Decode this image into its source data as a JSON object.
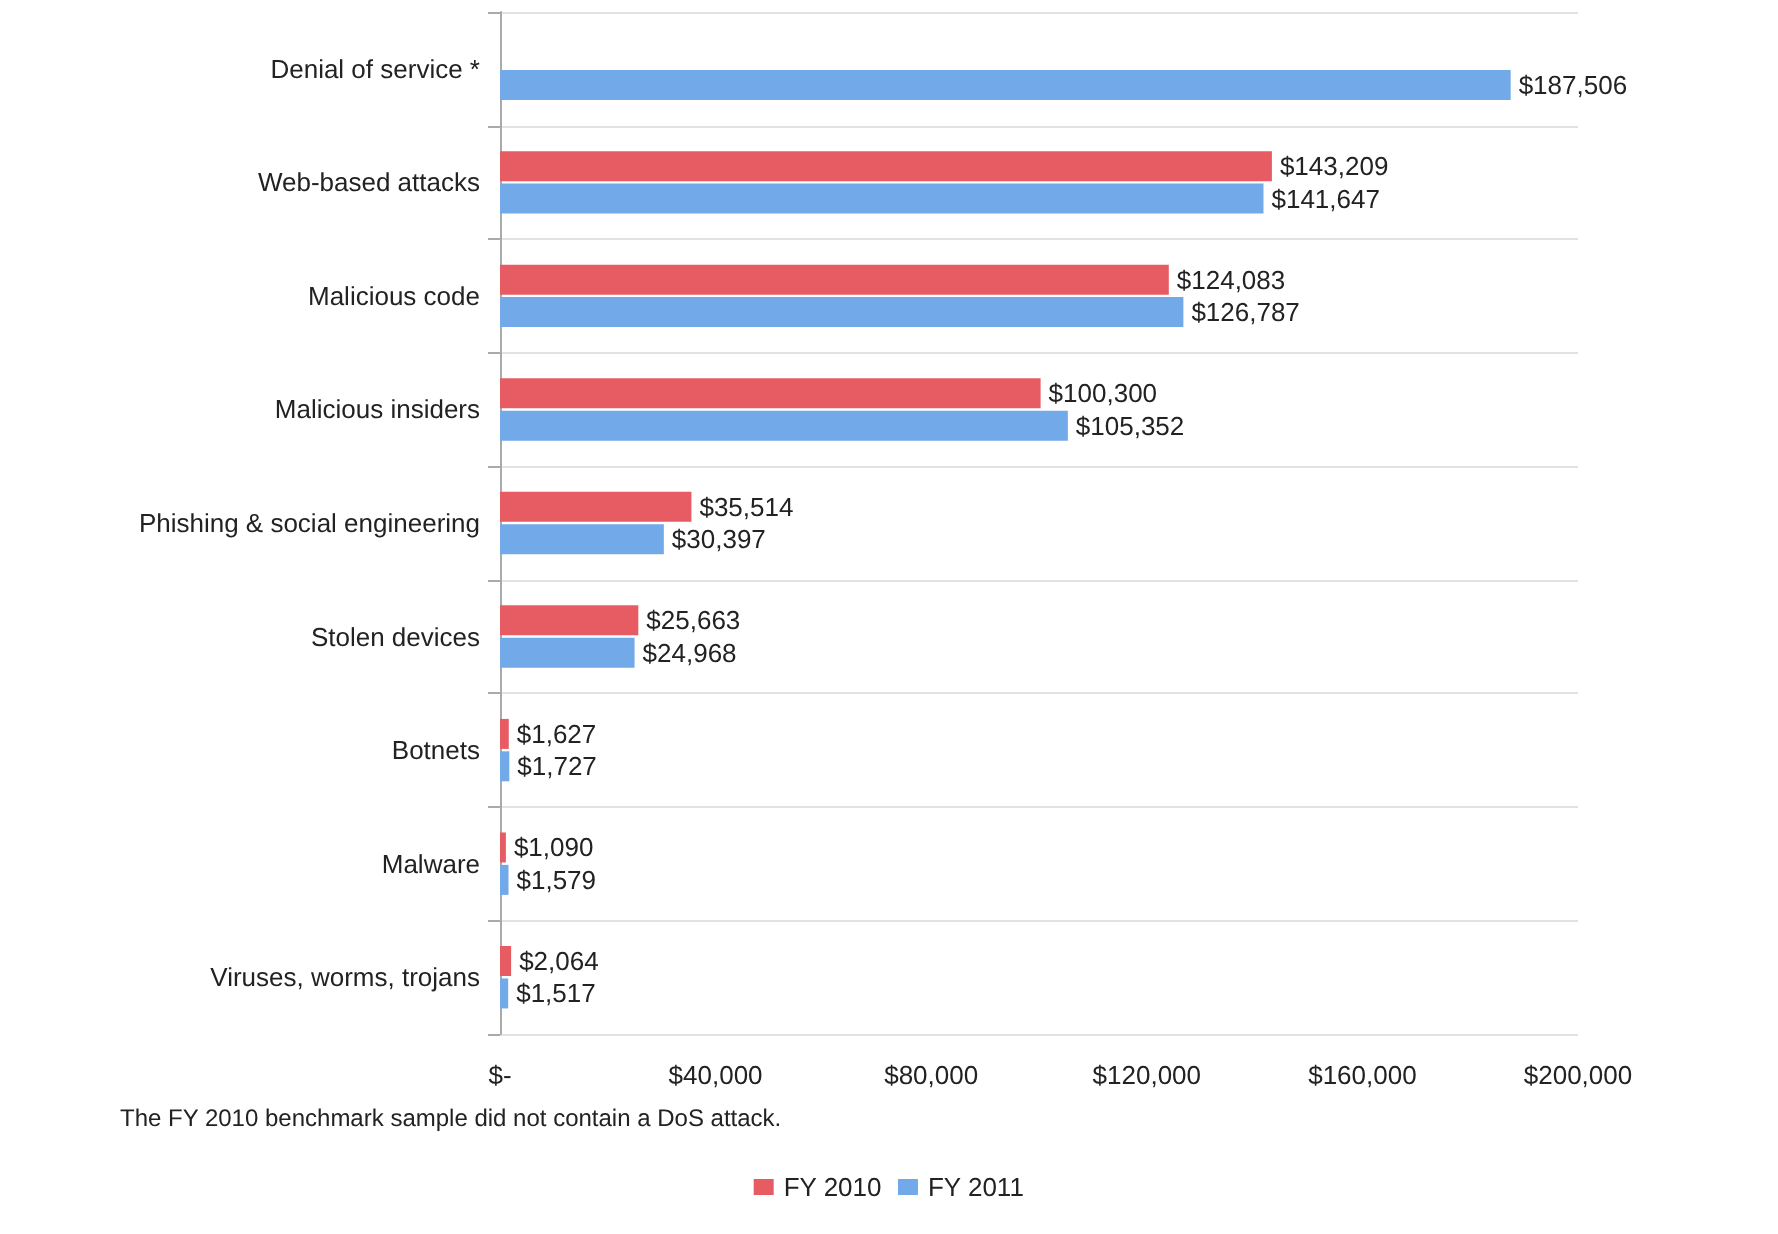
{
  "chart_data": {
    "type": "bar",
    "orientation": "horizontal",
    "categories": [
      "Denial of service *",
      "Web-based attacks",
      "Malicious code",
      "Malicious insiders",
      "Phishing & social engineering",
      "Stolen devices",
      "Botnets",
      "Malware",
      "Viruses, worms, trojans"
    ],
    "series": [
      {
        "name": "FY 2010",
        "color": "#e65c62",
        "values": [
          null,
          143209,
          124083,
          100300,
          35514,
          25663,
          1627,
          1090,
          2064
        ],
        "value_labels": [
          null,
          "$143,209",
          "$124,083",
          "$100,300",
          "$35,514",
          "$25,663",
          "$1,627",
          "$1,090",
          "$2,064"
        ]
      },
      {
        "name": "FY 2011",
        "color": "#72a9e8",
        "values": [
          187506,
          141647,
          126787,
          105352,
          30397,
          24968,
          1727,
          1579,
          1517
        ],
        "value_labels": [
          "$187,506",
          "$141,647",
          "$126,787",
          "$105,352",
          "$30,397",
          "$24,968",
          "$1,727",
          "$1,579",
          "$1,517"
        ]
      }
    ],
    "xlim": [
      0,
      200000
    ],
    "xticks": [
      {
        "value": 0,
        "label": "$-"
      },
      {
        "value": 40000,
        "label": "$40,000"
      },
      {
        "value": 80000,
        "label": "$80,000"
      },
      {
        "value": 120000,
        "label": "$120,000"
      },
      {
        "value": 160000,
        "label": "$160,000"
      },
      {
        "value": 200000,
        "label": "$200,000"
      }
    ],
    "annotations": [
      "The FY 2010 benchmark sample did not contain a DoS attack."
    ],
    "legend": "bottom"
  }
}
